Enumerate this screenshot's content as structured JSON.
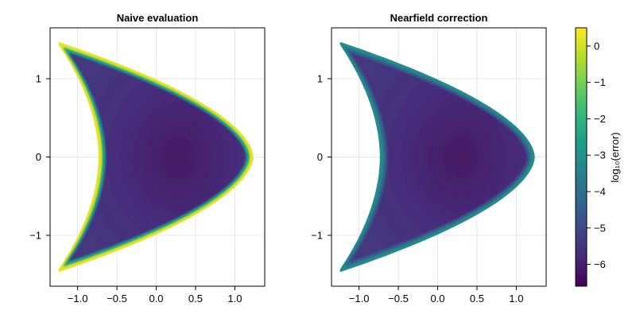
{
  "chart_data": {
    "type": "heatmap",
    "shape_description": "crescent (kite-like) domain, colored by log10 of evaluation error",
    "panels": [
      {
        "title": "Naive evaluation",
        "interior_log10_error": -5.5,
        "boundary_log10_error": 0.2,
        "xlim": [
          -1.35,
          1.38
        ],
        "ylim": [
          -1.65,
          1.65
        ]
      },
      {
        "title": "Nearfield correction",
        "interior_log10_error": -5.5,
        "boundary_log10_error": -3.2,
        "xlim": [
          -1.35,
          1.38
        ],
        "ylim": [
          -1.65,
          1.65
        ]
      }
    ],
    "xticks": [
      -1.0,
      -0.5,
      0.0,
      0.5,
      1.0
    ],
    "xtick_labels": [
      "−1.0",
      "−0.5",
      "0.0",
      "0.5",
      "1.0"
    ],
    "yticks": [
      1,
      0,
      -1
    ],
    "ytick_labels": [
      "1",
      "0",
      "−1"
    ],
    "colorbar": {
      "label": "log₁₀(error)",
      "range": [
        -6.6,
        0.5
      ],
      "ticks": [
        0,
        -1,
        -2,
        -3,
        -4,
        -5,
        -6
      ],
      "tick_labels": [
        "0",
        "−1",
        "−2",
        "−3",
        "−4",
        "−5",
        "−6"
      ],
      "colormap": "viridis",
      "colors": [
        "#440154",
        "#482878",
        "#3e4989",
        "#31688e",
        "#26828e",
        "#1f9e89",
        "#35b779",
        "#6ece58",
        "#b5de2b",
        "#fde725"
      ]
    }
  }
}
